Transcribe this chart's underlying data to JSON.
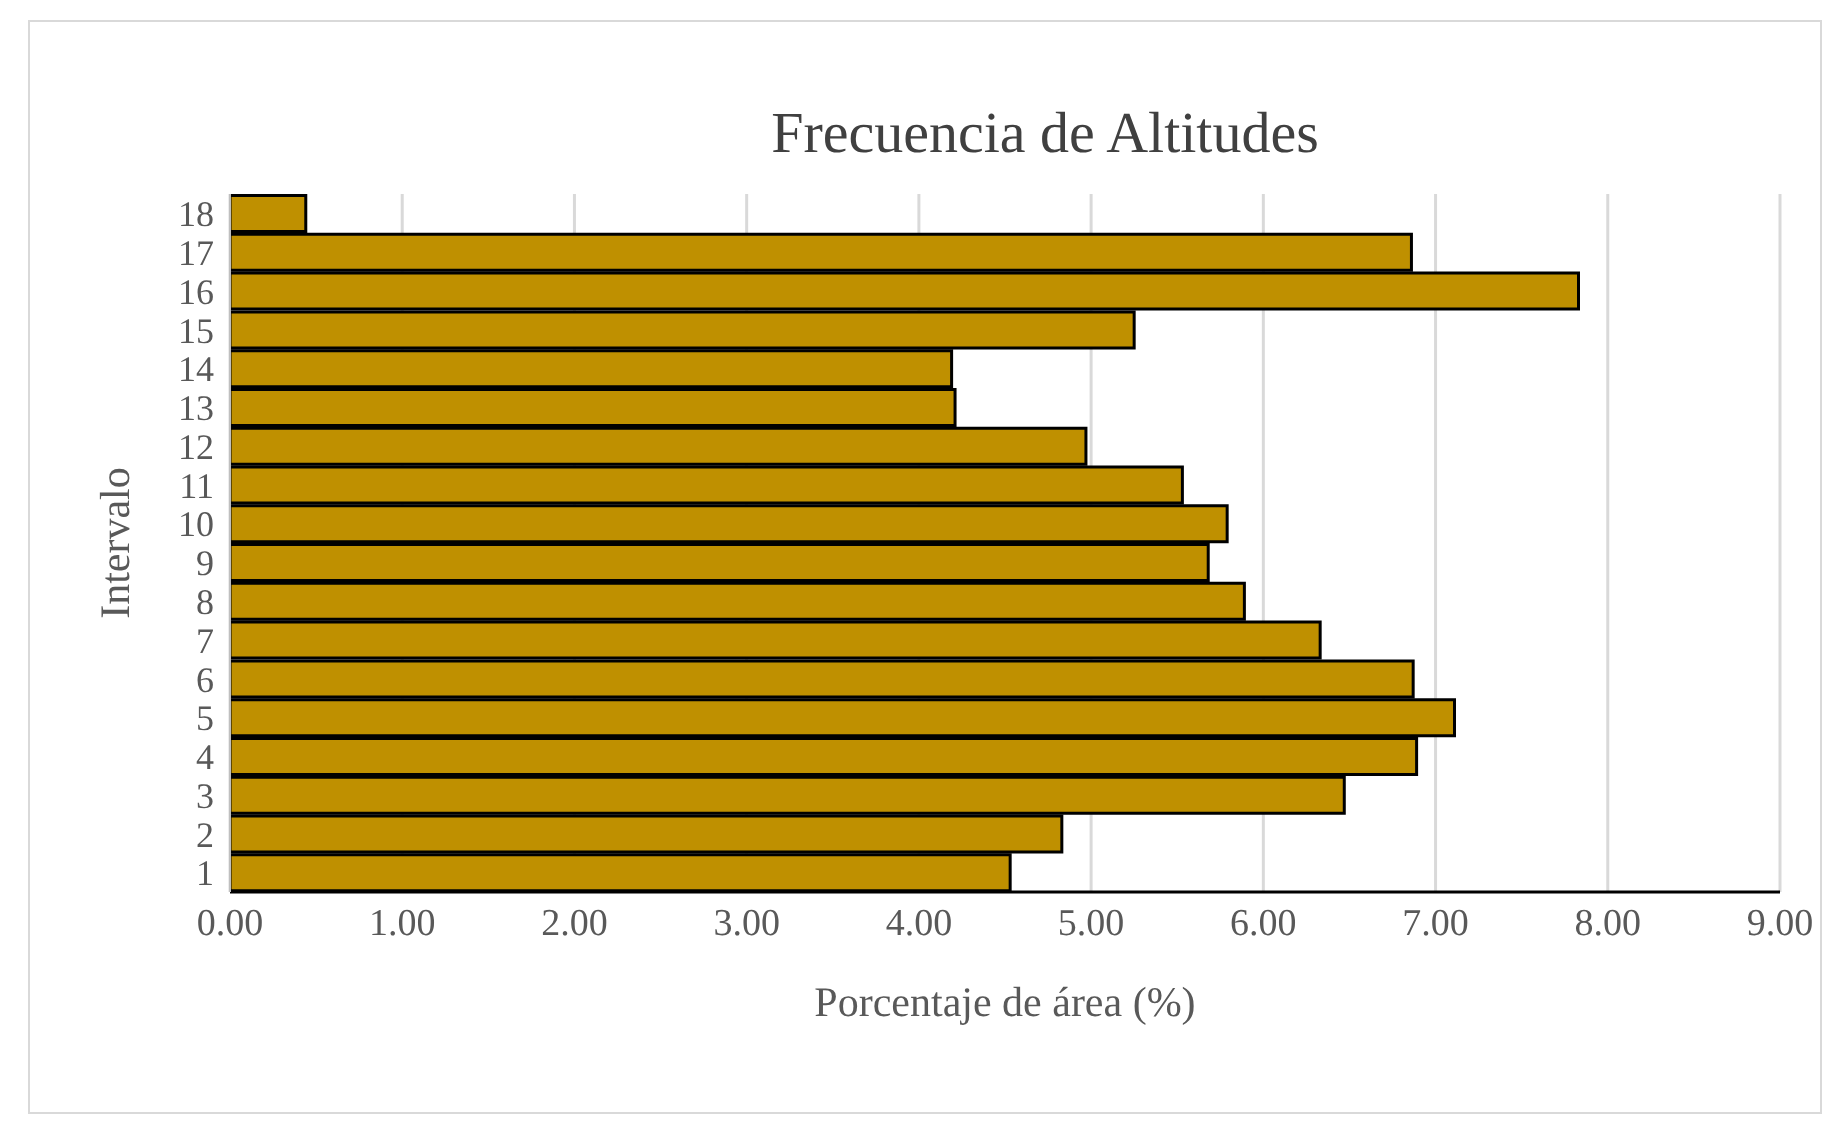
{
  "chart_data": {
    "type": "bar",
    "orientation": "horizontal",
    "title": "Frecuencia de Altitudes",
    "xlabel": "Porcentaje de área (%)",
    "ylabel": "Intervalo",
    "categories": [
      "18",
      "17",
      "16",
      "15",
      "14",
      "13",
      "12",
      "11",
      "10",
      "9",
      "8",
      "7",
      "6",
      "5",
      "4",
      "3",
      "2",
      "1"
    ],
    "values": [
      0.44,
      6.86,
      7.83,
      5.25,
      4.19,
      4.21,
      4.97,
      5.53,
      5.79,
      5.68,
      5.89,
      6.33,
      6.87,
      7.11,
      6.89,
      6.47,
      4.83,
      4.53
    ],
    "color": "#bf9000",
    "xlim": [
      0,
      9
    ],
    "xticks": [
      {
        "value": 0,
        "label": "0.00"
      },
      {
        "value": 1,
        "label": "1.00"
      },
      {
        "value": 2,
        "label": "2.00"
      },
      {
        "value": 3,
        "label": "3.00"
      },
      {
        "value": 4,
        "label": "4.00"
      },
      {
        "value": 5,
        "label": "5.00"
      },
      {
        "value": 6,
        "label": "6.00"
      },
      {
        "value": 7,
        "label": "7.00"
      },
      {
        "value": 8,
        "label": "8.00"
      },
      {
        "value": 9,
        "label": "9.00"
      }
    ],
    "grid": "x"
  }
}
